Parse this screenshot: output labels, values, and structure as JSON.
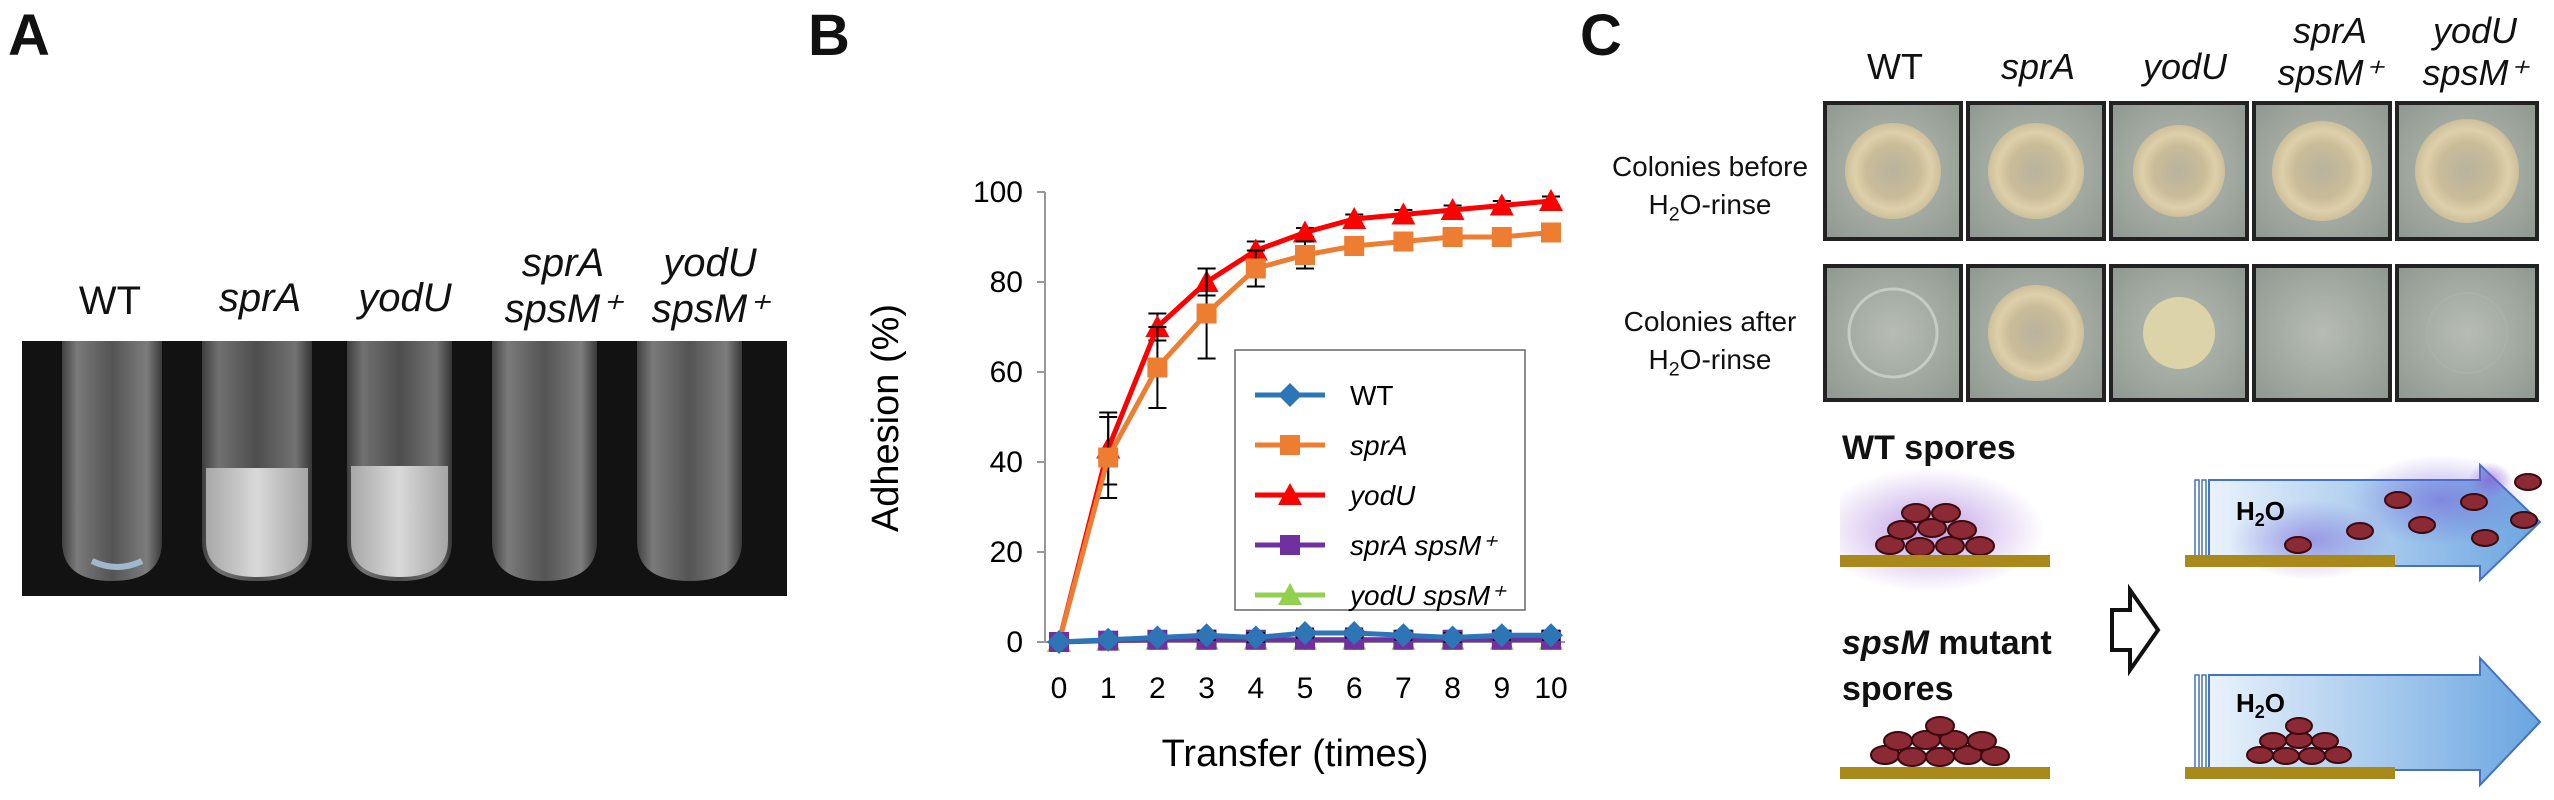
{
  "panels": {
    "a": {
      "letter": "A",
      "labels": [
        {
          "line1": "WT",
          "line2": ""
        },
        {
          "line1": "sprA",
          "line2": ""
        },
        {
          "line1": "yodU",
          "line2": ""
        },
        {
          "line1": "sprA",
          "line2": "spsM⁺"
        },
        {
          "line1": "yodU",
          "line2": "spsM⁺"
        }
      ]
    },
    "b": {
      "letter": "B"
    },
    "c": {
      "letter": "C",
      "columns": [
        {
          "line1": "WT",
          "line2": ""
        },
        {
          "line1": "sprA",
          "line2": ""
        },
        {
          "line1": "yodU",
          "line2": ""
        },
        {
          "line1": "sprA",
          "line2": "spsM⁺"
        },
        {
          "line1": "yodU",
          "line2": "spsM⁺"
        }
      ],
      "row_before": {
        "line1": "Colonies before",
        "line2_pre": "H",
        "line2_sub": "2",
        "line2_post": "O-rinse"
      },
      "row_after": {
        "line1": "Colonies after",
        "line2_pre": "H",
        "line2_sub": "2",
        "line2_post": "O-rinse"
      },
      "wt_spores": "WT spores",
      "mutant_line1_it": "spsM",
      "mutant_line1_rest": " mutant",
      "mutant_line2": "spores",
      "water_pre": "H",
      "water_sub": "2",
      "water_post": "O"
    }
  },
  "chart_data": {
    "type": "line",
    "xlabel": "Transfer (times)",
    "ylabel": "Adhesion (%)",
    "x": [
      0,
      1,
      2,
      3,
      4,
      5,
      6,
      7,
      8,
      9,
      10
    ],
    "xlim": [
      0,
      10
    ],
    "ylim": [
      0,
      100
    ],
    "yticks": [
      0,
      20,
      40,
      60,
      80,
      100
    ],
    "grid": false,
    "legend_position": "inside-right",
    "series": [
      {
        "name": "WT",
        "color": "#2E75B6",
        "marker": "diamond",
        "values": [
          0,
          0.5,
          1,
          1.5,
          1,
          2,
          2,
          1.5,
          1,
          1.5,
          1.5
        ],
        "errors": [
          0,
          0.5,
          0.5,
          1,
          1,
          1,
          1,
          1,
          1,
          1,
          1
        ]
      },
      {
        "name": "sprA",
        "color": "#ED7D31",
        "marker": "square",
        "values": [
          0,
          41,
          61,
          73,
          83,
          86,
          88,
          89,
          90,
          90,
          91
        ],
        "errors": [
          0,
          9,
          9,
          10,
          4,
          3,
          2,
          2,
          2,
          2,
          2
        ]
      },
      {
        "name": "yodU",
        "color": "#FF0000",
        "marker": "triangle",
        "values": [
          0,
          43,
          70,
          80,
          87,
          91,
          94,
          95,
          96,
          97,
          98
        ],
        "errors": [
          0,
          8,
          3,
          3,
          2,
          1,
          1,
          1,
          1,
          1,
          1
        ]
      },
      {
        "name": "sprA spsM⁺",
        "color": "#7030A0",
        "marker": "square",
        "values": [
          0,
          0.3,
          0.5,
          0.5,
          0.5,
          0.5,
          0.5,
          0.5,
          0.5,
          0.5,
          0.5
        ],
        "errors": [
          0,
          0.3,
          0.3,
          0.3,
          0.3,
          0.3,
          0.3,
          0.3,
          0.3,
          0.3,
          0.3
        ]
      },
      {
        "name": "yodU spsM⁺",
        "color": "#92D050",
        "marker": "triangle",
        "values": [
          0,
          0.3,
          0.5,
          0.5,
          0.5,
          0.5,
          0.5,
          0.5,
          0.5,
          0.5,
          0.5
        ],
        "errors": [
          0,
          0.3,
          0.3,
          0.3,
          0.3,
          0.3,
          0.3,
          0.3,
          0.3,
          0.3,
          0.3
        ]
      }
    ]
  }
}
